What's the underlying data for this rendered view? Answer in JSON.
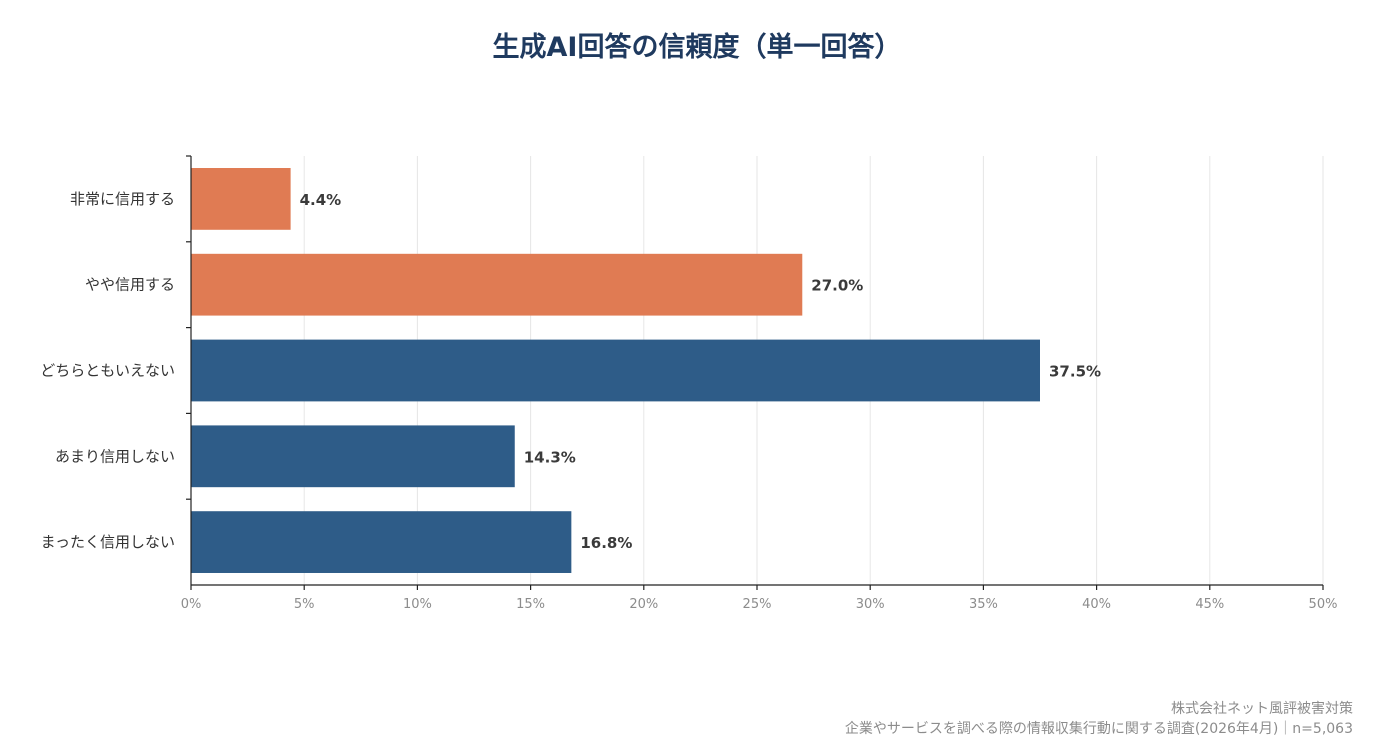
{
  "chart_data": {
    "type": "bar",
    "orientation": "horizontal",
    "title": "生成AI回答の信頼度（単一回答）",
    "categories": [
      "非常に信用する",
      "やや信用する",
      "どちらともいえない",
      "あまり信用しない",
      "まったく信用しない"
    ],
    "values": [
      4.4,
      27.0,
      37.5,
      14.3,
      16.8
    ],
    "value_labels": [
      "4.4%",
      "27.0%",
      "37.5%",
      "14.3%",
      "16.8%"
    ],
    "bar_colors": [
      "#e07b53",
      "#e07b53",
      "#2e5c88",
      "#2e5c88",
      "#2e5c88"
    ],
    "xlim": [
      0,
      50
    ],
    "x_ticks": [
      0,
      5,
      10,
      15,
      20,
      25,
      30,
      35,
      40,
      45,
      50
    ],
    "x_tick_labels": [
      "0%",
      "5%",
      "10%",
      "15%",
      "20%",
      "25%",
      "30%",
      "35%",
      "40%",
      "45%",
      "50%"
    ],
    "grid": true,
    "xlabel": "",
    "ylabel": ""
  },
  "source": {
    "line1": "株式会社ネット風評被害対策",
    "line2": "企業やサービスを調べる際の情報収集行動に関する調査(2026年4月)｜n=5,063"
  }
}
